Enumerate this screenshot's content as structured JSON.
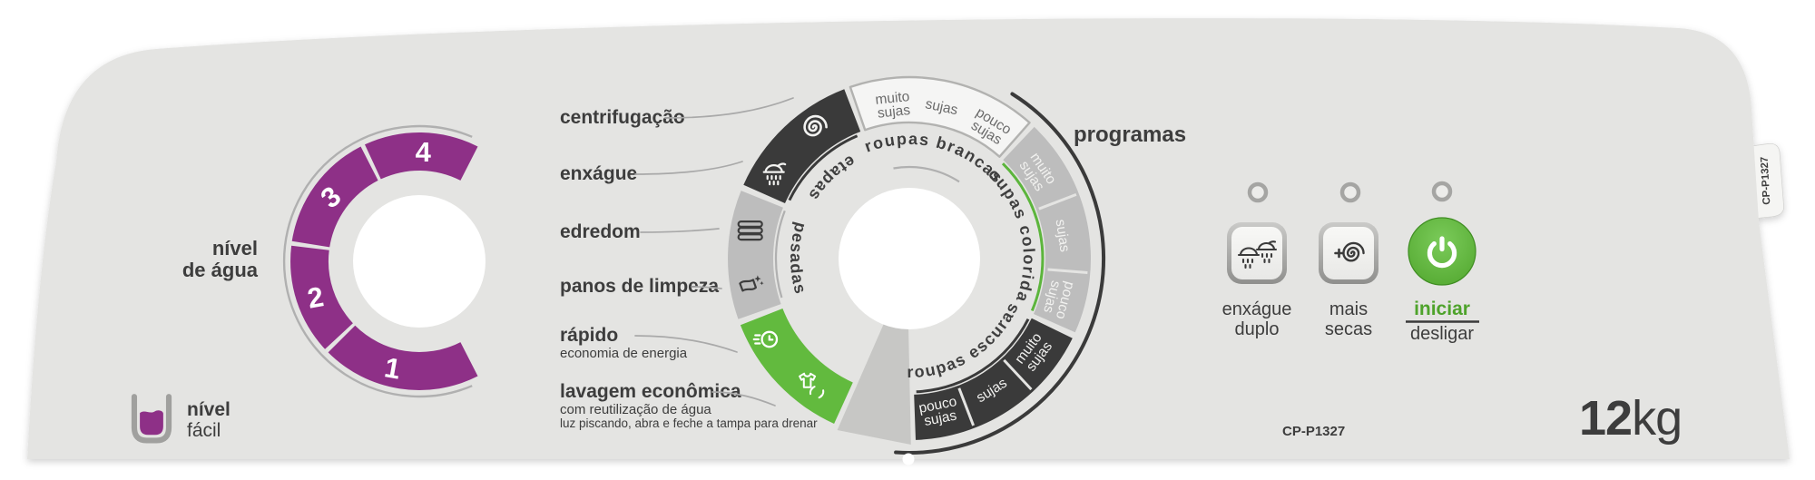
{
  "panel": {
    "model_bottom": "CP-P1327",
    "model_tab": "CP-P1327",
    "capacity_value": "12",
    "capacity_unit": "kg"
  },
  "brand": {
    "line1": "nível",
    "line2": "fácil"
  },
  "water_level": {
    "title_line1": "nível",
    "title_line2": "de água",
    "levels": [
      "1",
      "2",
      "3",
      "4"
    ]
  },
  "side_labels": {
    "centrifugacao": {
      "title": "centrifugação"
    },
    "enxague": {
      "title": "enxágue"
    },
    "edredom": {
      "title": "edredom"
    },
    "panos": {
      "title": "panos de limpeza"
    },
    "rapido": {
      "title": "rápido",
      "subtitle": "economia de energia"
    },
    "lavagem": {
      "title": "lavagem econômica",
      "subtitle": "com reutilização de água",
      "note": "luz piscando, abra e feche a tampa para drenar"
    }
  },
  "dial": {
    "title": "programas",
    "steps_label": "etapas",
    "heavy_label": "pesadas",
    "programs": {
      "brancas": {
        "name": "roupas brancas",
        "levels": [
          {
            "l1": "muito",
            "l2": "sujas"
          },
          {
            "l1": "sujas",
            "l2": ""
          },
          {
            "l1": "pouco",
            "l2": "sujas"
          }
        ]
      },
      "coloridas": {
        "name": "roupas coloridas",
        "levels": [
          {
            "l1": "muito",
            "l2": "sujas"
          },
          {
            "l1": "sujas",
            "l2": ""
          },
          {
            "l1": "pouco",
            "l2": "sujas"
          }
        ]
      },
      "escuras": {
        "name": "roupas escuras",
        "levels": [
          {
            "l1": "pouco",
            "l2": "sujas"
          },
          {
            "l1": "sujas",
            "l2": ""
          },
          {
            "l1": "muito",
            "l2": "sujas"
          }
        ]
      }
    }
  },
  "controls": {
    "extra_rinse": {
      "line1": "enxágue",
      "line2": "duplo"
    },
    "extra_spin": {
      "line1": "mais",
      "line2": "secas"
    },
    "start": {
      "on_label": "iniciar",
      "off_label": "desligar"
    }
  },
  "colors": {
    "panel": "#e4e4e2",
    "purple": "#8e3087",
    "green": "#62ba3e",
    "dark": "#3a3a3a",
    "silver": "#bdbdbd",
    "start_text_green": "#4ea32b"
  }
}
